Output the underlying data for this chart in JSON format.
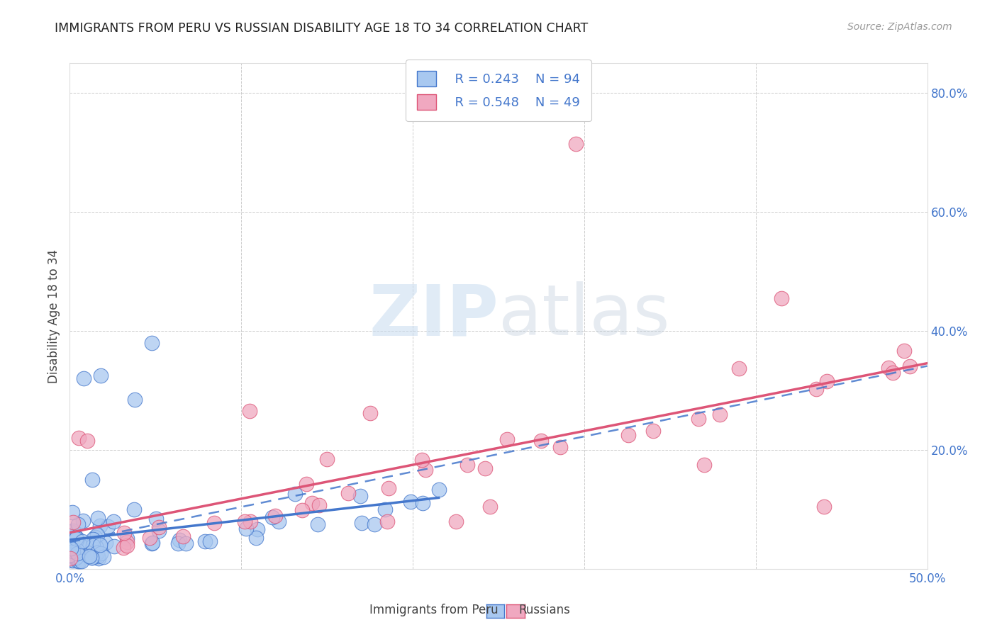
{
  "title": "IMMIGRANTS FROM PERU VS RUSSIAN DISABILITY AGE 18 TO 34 CORRELATION CHART",
  "source": "Source: ZipAtlas.com",
  "ylabel": "Disability Age 18 to 34",
  "xlim": [
    0.0,
    0.5
  ],
  "ylim": [
    0.0,
    0.85
  ],
  "xticks": [
    0.0,
    0.1,
    0.2,
    0.3,
    0.4,
    0.5
  ],
  "yticks": [
    0.2,
    0.4,
    0.6,
    0.8
  ],
  "peru_color": "#A8C8F0",
  "peru_color_dark": "#4477CC",
  "russian_color": "#F0A8C0",
  "russian_color_dark": "#DD5577",
  "background_color": "#FFFFFF",
  "grid_color": "#CCCCCC",
  "watermark_color": "#C8DCF0",
  "legend_R1": "R = 0.243",
  "legend_N1": "N = 94",
  "legend_R2": "R = 0.548",
  "legend_N2": "N = 49",
  "peru_trend": [
    0.005,
    0.16
  ],
  "russian_trend": [
    -0.005,
    0.7
  ],
  "dashed_trend": [
    0.0,
    0.7
  ],
  "note_color": "#4477CC"
}
